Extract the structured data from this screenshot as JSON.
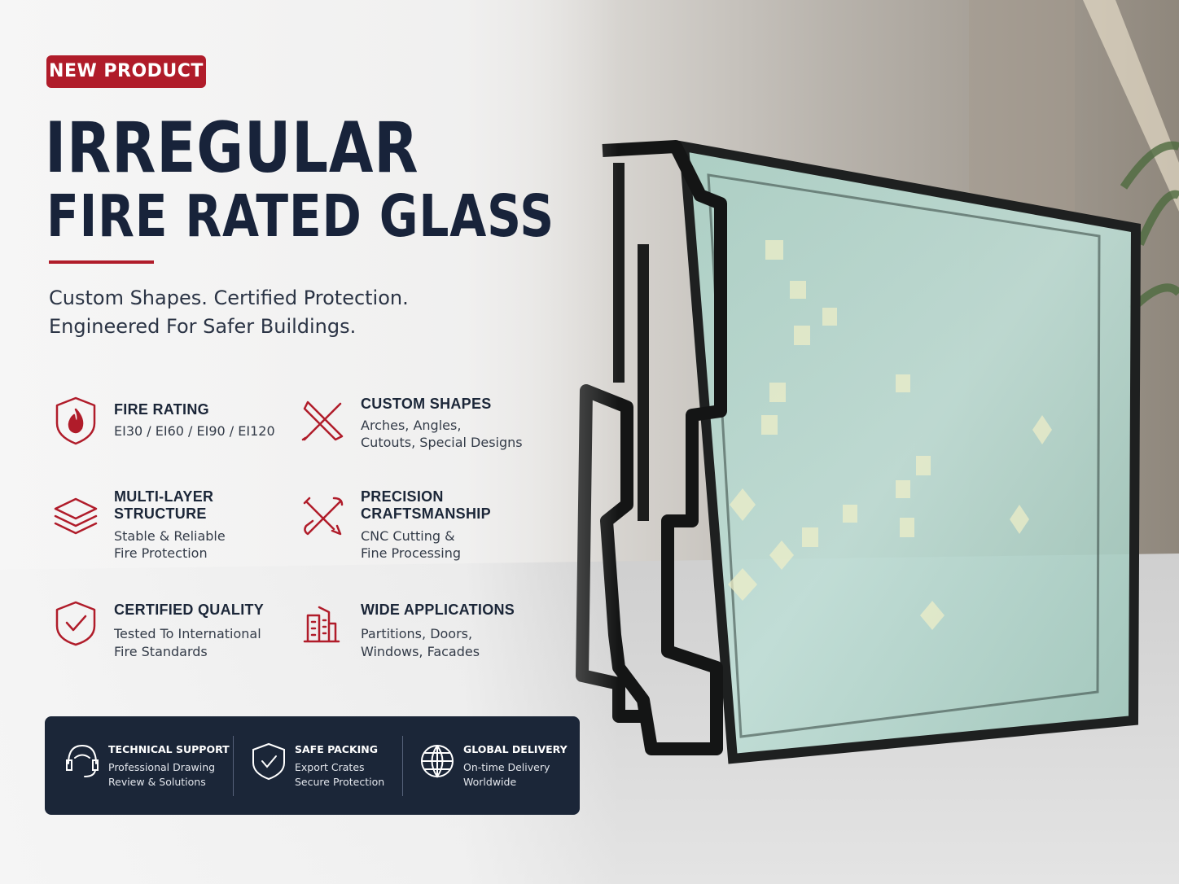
{
  "badge": "NEW PRODUCT",
  "title": {
    "line1": "IRREGULAR",
    "line2": "FIRE RATED GLASS"
  },
  "subtitle": [
    "Custom Shapes. Certified Protection.",
    "Engineered For Safer Buildings."
  ],
  "features": [
    {
      "title": [
        "FIRE RATING"
      ],
      "description": [
        "EI30 / EI60 / EI90 / EI120"
      ]
    },
    {
      "title": [
        "CUSTOM SHAPES"
      ],
      "description": [
        "Arches, Angles,",
        "Cutouts, Special Designs"
      ]
    },
    {
      "title": [
        "MULTI-LAYER",
        "STRUCTURE"
      ],
      "description": [
        "Stable & Reliable",
        "Fire Protection"
      ]
    },
    {
      "title": [
        "PRECISION",
        "CRAFTSMANSHIP"
      ],
      "description": [
        "CNC Cutting &",
        "Fine Processing"
      ]
    },
    {
      "title": [
        "CERTIFIED QUALITY"
      ],
      "description": [
        "Tested To International",
        "Fire Standards"
      ]
    },
    {
      "title": [
        "WIDE APPLICATIONS"
      ],
      "description": [
        "Partitions, Doors,",
        "Windows, Facades"
      ]
    }
  ],
  "services": [
    {
      "title": "TECHNICAL SUPPORT",
      "description": [
        "Professional Drawing",
        "Review & Solutions"
      ]
    },
    {
      "title": "SAFE PACKING",
      "description": [
        "Export Crates",
        "Secure Protection"
      ]
    },
    {
      "title": "GLOBAL DELIVERY",
      "description": [
        "On-time Delivery",
        "Worldwide"
      ]
    }
  ]
}
